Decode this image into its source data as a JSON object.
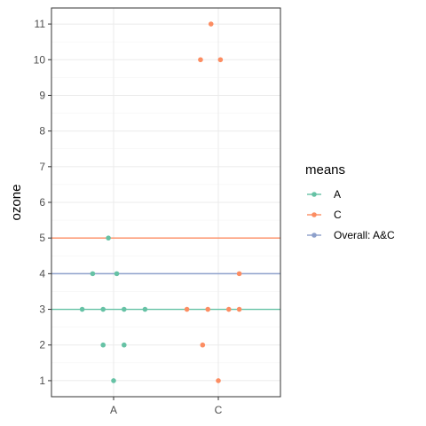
{
  "chart_data": {
    "type": "scatter",
    "title": "",
    "xlabel": "",
    "ylabel": "ozone",
    "categories": [
      "A",
      "C"
    ],
    "ylim": [
      0.55,
      11.45
    ],
    "yticks": [
      1,
      2,
      3,
      4,
      5,
      6,
      7,
      8,
      9,
      10,
      11
    ],
    "grid": true,
    "legend": {
      "title": "means",
      "position": "right",
      "entries": [
        {
          "label": "A",
          "color": "#66C2A5"
        },
        {
          "label": "C",
          "color": "#FC8D62"
        },
        {
          "label": "Overall: A&C",
          "color": "#8DA0CB"
        }
      ]
    },
    "series": [
      {
        "name": "A",
        "category": "A",
        "color": "#66C2A5",
        "points": [
          {
            "jitter": -0.05,
            "y": 5
          },
          {
            "jitter": -0.2,
            "y": 4
          },
          {
            "jitter": 0.03,
            "y": 4
          },
          {
            "jitter": -0.3,
            "y": 3
          },
          {
            "jitter": -0.1,
            "y": 3
          },
          {
            "jitter": 0.1,
            "y": 3
          },
          {
            "jitter": 0.3,
            "y": 3
          },
          {
            "jitter": -0.1,
            "y": 2
          },
          {
            "jitter": 0.1,
            "y": 2
          },
          {
            "jitter": 0.0,
            "y": 1
          }
        ]
      },
      {
        "name": "C",
        "category": "C",
        "color": "#FC8D62",
        "points": [
          {
            "jitter": -0.07,
            "y": 11
          },
          {
            "jitter": -0.17,
            "y": 10
          },
          {
            "jitter": 0.02,
            "y": 10
          },
          {
            "jitter": 0.2,
            "y": 4
          },
          {
            "jitter": -0.3,
            "y": 3
          },
          {
            "jitter": -0.1,
            "y": 3
          },
          {
            "jitter": 0.1,
            "y": 3
          },
          {
            "jitter": 0.2,
            "y": 3
          },
          {
            "jitter": -0.15,
            "y": 2
          },
          {
            "jitter": 0.0,
            "y": 1
          }
        ]
      }
    ],
    "hlines": [
      {
        "name": "A",
        "y": 3,
        "color": "#66C2A5"
      },
      {
        "name": "C",
        "y": 5,
        "color": "#FC8D62"
      },
      {
        "name": "Overall: A&C",
        "y": 4,
        "color": "#8DA0CB"
      }
    ]
  }
}
